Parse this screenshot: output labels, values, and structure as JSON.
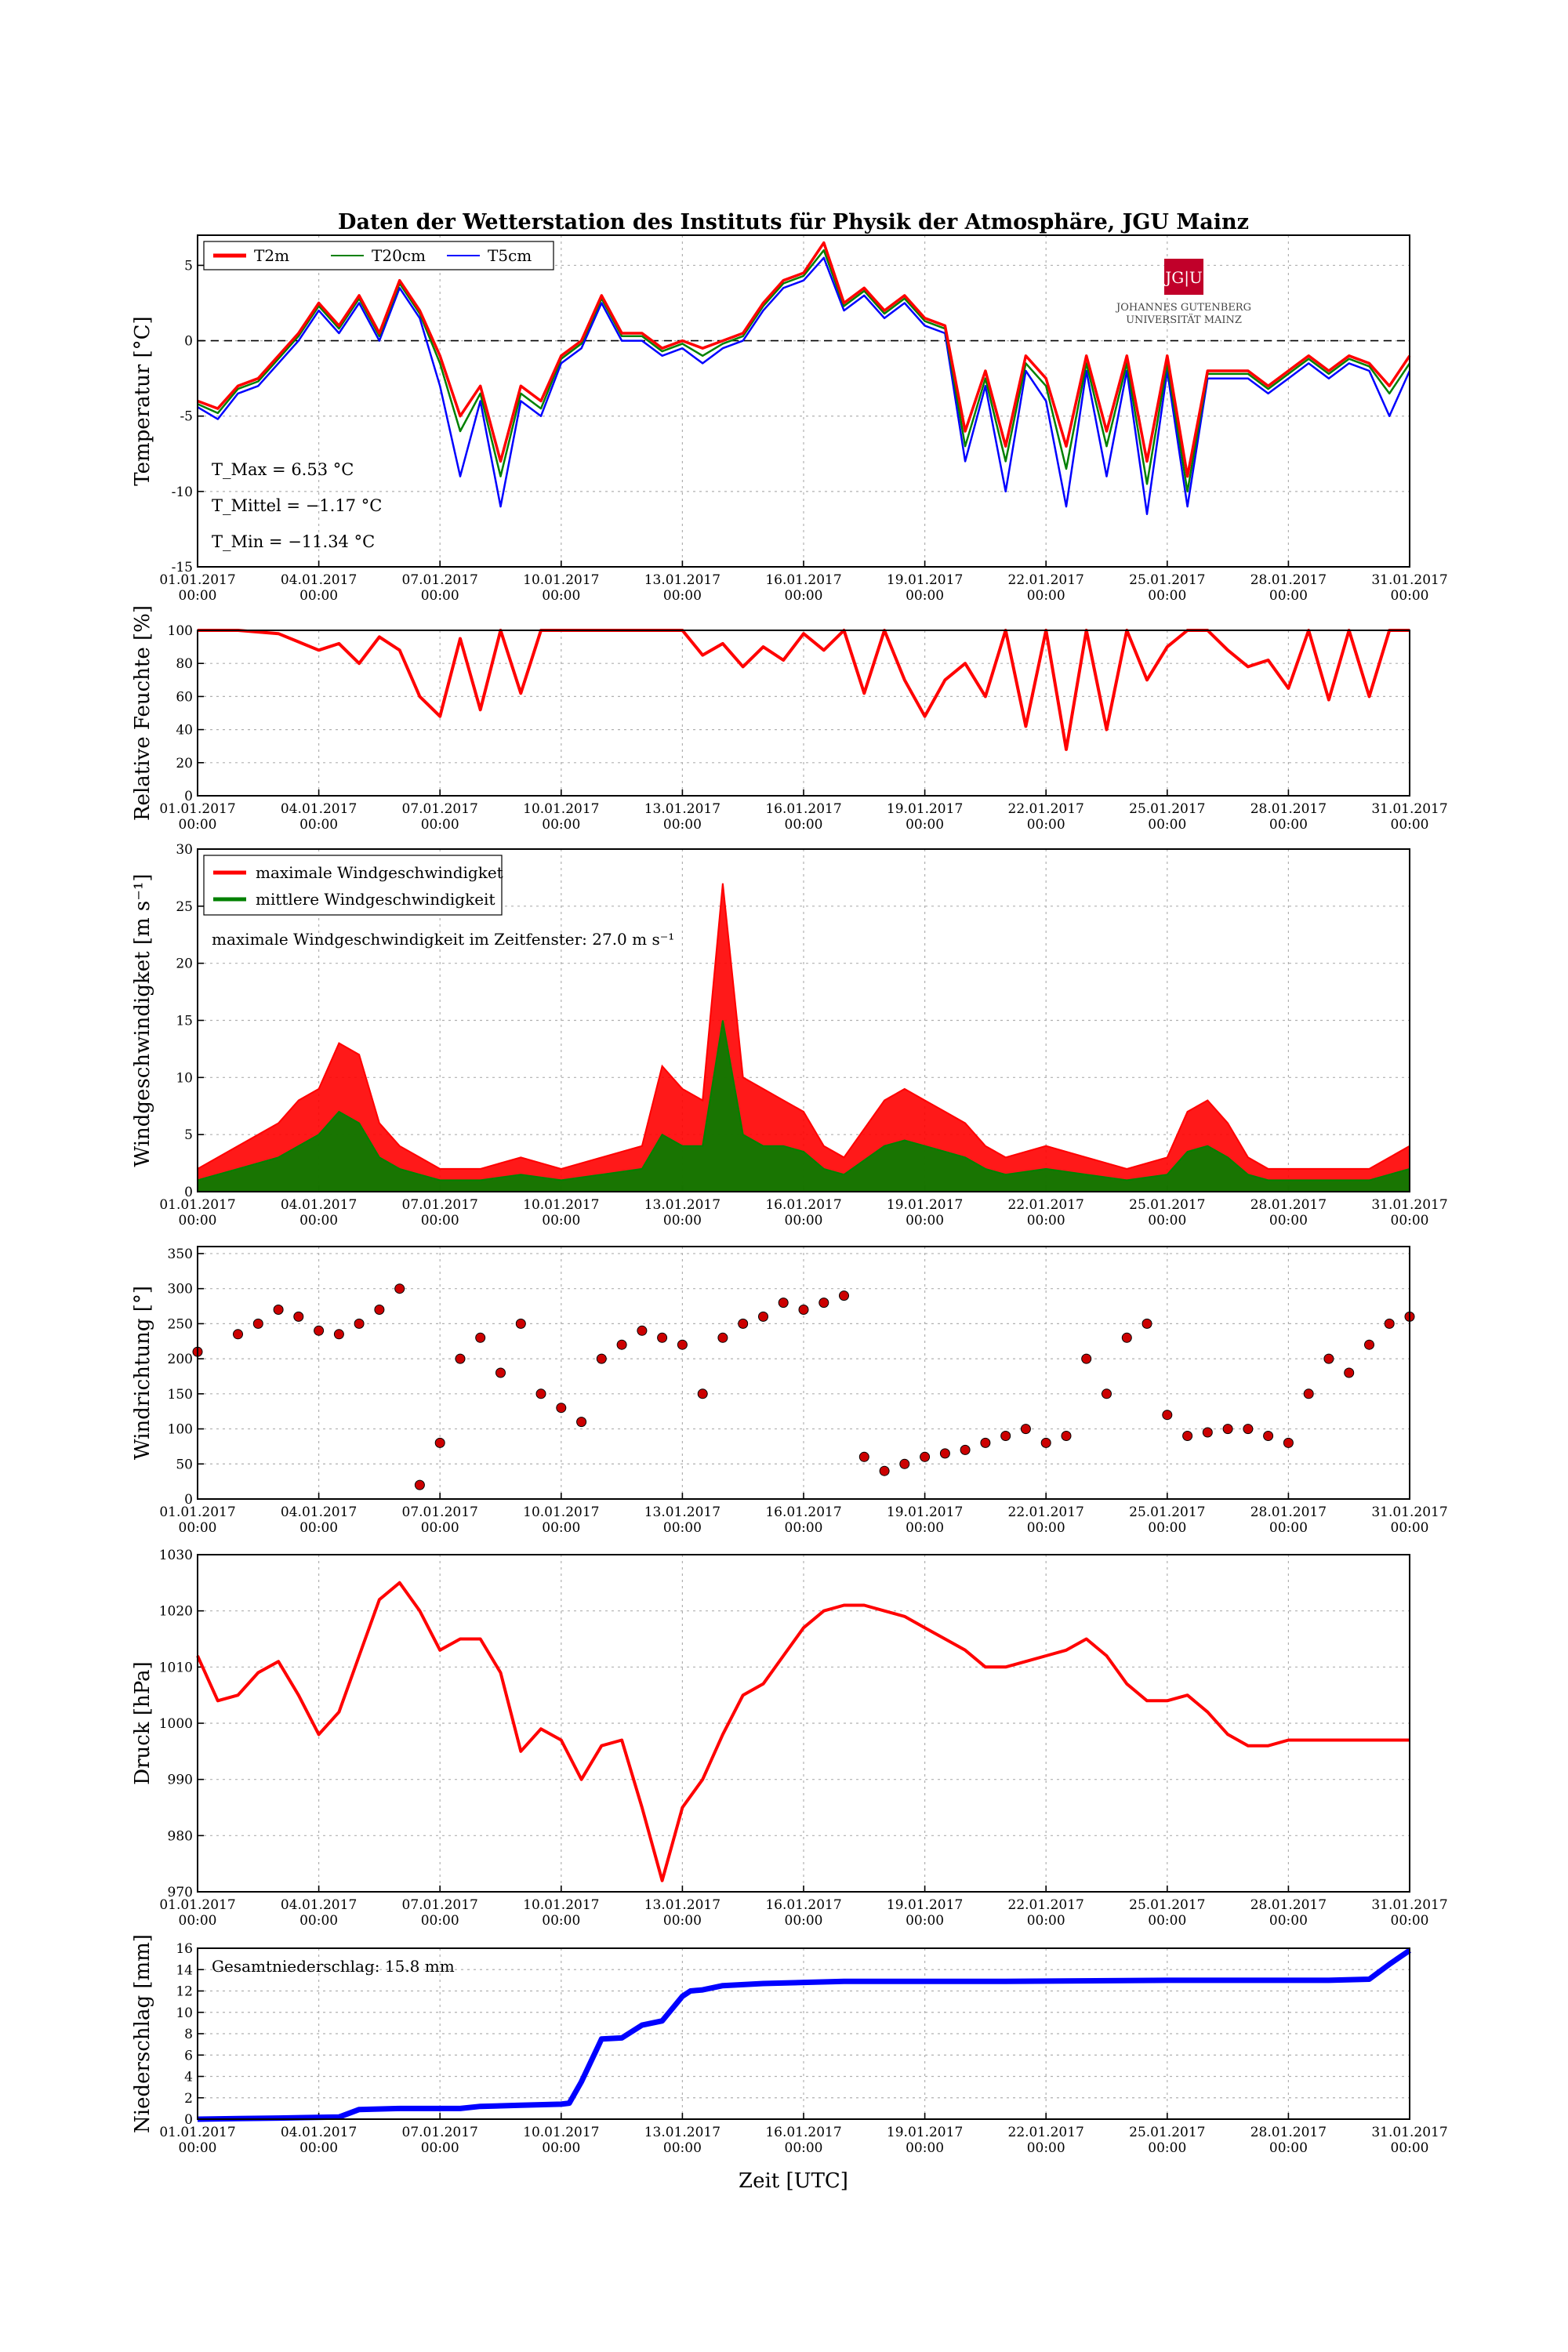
{
  "title": "Daten der Wetterstation des Instituts für Physik der Atmosphäre, JGU Mainz",
  "xlabel": "Zeit [UTC]",
  "x_ticks": [
    {
      "date": "01.01.2017",
      "time": "00:00"
    },
    {
      "date": "04.01.2017",
      "time": "00:00"
    },
    {
      "date": "07.01.2017",
      "time": "00:00"
    },
    {
      "date": "10.01.2017",
      "time": "00:00"
    },
    {
      "date": "13.01.2017",
      "time": "00:00"
    },
    {
      "date": "16.01.2017",
      "time": "00:00"
    },
    {
      "date": "19.01.2017",
      "time": "00:00"
    },
    {
      "date": "22.01.2017",
      "time": "00:00"
    },
    {
      "date": "25.01.2017",
      "time": "00:00"
    },
    {
      "date": "28.01.2017",
      "time": "00:00"
    },
    {
      "date": "31.01.2017",
      "time": "00:00"
    }
  ],
  "logo": {
    "mark": "JG|U",
    "line1": "JOHANNES GUTENBERG",
    "line2": "UNIVERSITÄT MAINZ",
    "color": "#c1002a"
  },
  "colors": {
    "red": "#ff0000",
    "green": "#008000",
    "blue": "#0000ff",
    "darkred": "#cc0000"
  },
  "chart_data": [
    {
      "type": "line",
      "ylabel": "Temperatur [°C]",
      "ylim": [
        -15,
        7
      ],
      "yticks": [
        -15,
        -10,
        -5,
        0,
        5
      ],
      "legend": {
        "placement": "top-left",
        "entries": [
          "T2m",
          "T20cm",
          "T5cm"
        ]
      },
      "annotations": [
        "T_Max = 6.53 °C",
        "T_Mittel = −1.17 °C",
        "T_Min = −11.34 °C"
      ],
      "x_days": [
        0,
        0.5,
        1,
        1.5,
        2,
        2.5,
        3,
        3.5,
        4,
        4.5,
        5,
        5.5,
        6,
        6.5,
        7,
        7.5,
        8,
        8.5,
        9,
        9.5,
        10,
        10.5,
        11,
        11.5,
        12,
        12.5,
        13,
        13.5,
        14,
        14.5,
        15,
        15.5,
        16,
        16.5,
        17,
        17.5,
        18,
        18.5,
        19,
        19.5,
        20,
        20.5,
        21,
        21.5,
        22,
        22.5,
        23,
        23.5,
        24,
        24.5,
        25,
        25.5,
        26,
        26.5,
        27,
        27.5,
        28,
        28.5,
        29,
        29.5,
        30
      ],
      "series": [
        {
          "name": "T2m",
          "color": "#ff0000",
          "values": [
            -4,
            -4.5,
            -3,
            -2.5,
            -1,
            0.5,
            2.5,
            1,
            3,
            0.5,
            4,
            2,
            -1,
            -5,
            -3,
            -8,
            -3,
            -4,
            -1,
            0,
            3,
            0.5,
            0.5,
            -0.5,
            0,
            -0.5,
            0,
            0.5,
            2.5,
            4,
            4.5,
            6.5,
            2.5,
            3.5,
            2,
            3,
            1.5,
            1,
            -6,
            -2,
            -7,
            -1,
            -2.5,
            -7,
            -1,
            -6,
            -1,
            -8,
            -1,
            -9,
            -2,
            -2,
            -2,
            -3,
            -2,
            -1,
            -2,
            -1,
            -1.5,
            -3,
            -1
          ]
        },
        {
          "name": "T20cm",
          "color": "#008000",
          "values": [
            -4.2,
            -4.8,
            -3.2,
            -2.7,
            -1.2,
            0.3,
            2.3,
            0.8,
            2.8,
            0.3,
            3.8,
            1.8,
            -1.5,
            -6,
            -3.5,
            -9,
            -3.5,
            -4.5,
            -1.2,
            -0.2,
            2.8,
            0.3,
            0.3,
            -0.7,
            -0.2,
            -1,
            -0.2,
            0.3,
            2.3,
            3.8,
            4.3,
            6,
            2.3,
            3.3,
            1.8,
            2.8,
            1.3,
            0.8,
            -7,
            -2.5,
            -8,
            -1.5,
            -3,
            -8.5,
            -1.5,
            -7,
            -1.5,
            -9.5,
            -1.5,
            -10,
            -2.2,
            -2.2,
            -2.2,
            -3.2,
            -2.2,
            -1.2,
            -2.2,
            -1.2,
            -1.7,
            -3.5,
            -1.5
          ]
        },
        {
          "name": "T5cm",
          "color": "#0000ff",
          "values": [
            -4.4,
            -5.2,
            -3.5,
            -3,
            -1.5,
            0,
            2,
            0.5,
            2.5,
            0,
            3.5,
            1.5,
            -3,
            -9,
            -4,
            -11,
            -4,
            -5,
            -1.5,
            -0.5,
            2.5,
            0,
            0,
            -1,
            -0.5,
            -1.5,
            -0.5,
            0,
            2,
            3.5,
            4,
            5.5,
            2,
            3,
            1.5,
            2.5,
            1,
            0.5,
            -8,
            -3,
            -10,
            -2,
            -4,
            -11,
            -2,
            -9,
            -2,
            -11.5,
            -2,
            -11,
            -2.5,
            -2.5,
            -2.5,
            -3.5,
            -2.5,
            -1.5,
            -2.5,
            -1.5,
            -2,
            -5,
            -2
          ]
        }
      ]
    },
    {
      "type": "line",
      "ylabel": "Relative Feuchte [%]",
      "ylim": [
        0,
        100
      ],
      "yticks": [
        0,
        20,
        40,
        60,
        80,
        100
      ],
      "x_days": [
        0,
        1,
        2,
        3,
        3.5,
        4,
        4.5,
        5,
        5.5,
        6,
        6.5,
        7,
        7.5,
        8,
        8.5,
        9,
        10,
        11,
        12,
        12.5,
        13,
        13.5,
        14,
        14.5,
        15,
        15.5,
        16,
        16.5,
        17,
        17.5,
        18,
        18.5,
        19,
        19.5,
        20,
        20.5,
        21,
        21.5,
        22,
        22.5,
        23,
        23.5,
        24,
        24.5,
        25,
        25.5,
        26,
        26.5,
        27,
        27.5,
        28,
        28.5,
        29,
        29.5,
        30
      ],
      "values": [
        100,
        100,
        98,
        88,
        92,
        80,
        96,
        88,
        60,
        48,
        95,
        52,
        100,
        62,
        100,
        100,
        100,
        100,
        100,
        85,
        92,
        78,
        90,
        82,
        98,
        88,
        100,
        62,
        100,
        70,
        48,
        70,
        80,
        60,
        100,
        42,
        100,
        28,
        100,
        40,
        100,
        70,
        90,
        100,
        100,
        88,
        78,
        82,
        65,
        100,
        58,
        100,
        60,
        100,
        100
      ]
    },
    {
      "type": "line",
      "ylabel": "Windgeschwindigket [m s⁻¹]",
      "ylim": [
        0,
        30
      ],
      "yticks": [
        0,
        5,
        10,
        15,
        20,
        25,
        30
      ],
      "legend": {
        "placement": "top-left",
        "entries": [
          "maximale Windgeschwindigket",
          "mittlere Windgeschwindigkeit"
        ]
      },
      "annotation": "maximale Windgeschwindigkeit im Zeitfenster: 27.0 m s⁻¹",
      "x_days": [
        0,
        1,
        2,
        2.5,
        3,
        3.5,
        4,
        4.5,
        5,
        5.5,
        6,
        7,
        8,
        9,
        10,
        11,
        11.5,
        12,
        12.5,
        13,
        13.5,
        14,
        14.5,
        15,
        15.5,
        16,
        17,
        17.5,
        18,
        18.5,
        19,
        19.5,
        20,
        21,
        22,
        23,
        24,
        24.5,
        25,
        25.5,
        26,
        26.5,
        27,
        28,
        29,
        30
      ],
      "series": [
        {
          "name": "maximale Windgeschwindigket",
          "color": "#ff0000",
          "values": [
            2,
            4,
            6,
            8,
            9,
            13,
            12,
            6,
            4,
            3,
            2,
            2,
            3,
            2,
            3,
            4,
            11,
            9,
            8,
            27,
            10,
            9,
            8,
            7,
            4,
            3,
            8,
            9,
            8,
            7,
            6,
            4,
            3,
            4,
            3,
            2,
            3,
            7,
            8,
            6,
            3,
            2,
            2,
            2,
            2,
            4
          ]
        },
        {
          "name": "mittlere Windgeschwindigkeit",
          "color": "#008000",
          "values": [
            1,
            2,
            3,
            4,
            5,
            7,
            6,
            3,
            2,
            1.5,
            1,
            1,
            1.5,
            1,
            1.5,
            2,
            5,
            4,
            4,
            15,
            5,
            4,
            4,
            3.5,
            2,
            1.5,
            4,
            4.5,
            4,
            3.5,
            3,
            2,
            1.5,
            2,
            1.5,
            1,
            1.5,
            3.5,
            4,
            3,
            1.5,
            1,
            1,
            1,
            1,
            2
          ]
        }
      ]
    },
    {
      "type": "scatter",
      "ylabel": "Windrichtung [°]",
      "ylim": [
        0,
        360
      ],
      "yticks": [
        0,
        50,
        100,
        150,
        200,
        250,
        300,
        350
      ],
      "x_days": [
        0,
        1,
        1.5,
        2,
        2.5,
        3,
        3.5,
        4,
        4.5,
        5,
        5.5,
        6,
        6.5,
        7,
        7.5,
        8,
        8.5,
        9,
        9.5,
        10,
        10.5,
        11,
        11.5,
        12,
        12.5,
        13,
        13.5,
        14,
        14.5,
        15,
        15.5,
        16,
        16.5,
        17,
        17.5,
        18,
        18.5,
        19,
        19.5,
        20,
        20.5,
        21,
        21.5,
        22,
        22.5,
        23,
        23.5,
        24,
        24.5,
        25,
        25.5,
        26,
        26.5,
        27,
        27.5,
        28,
        28.5,
        29,
        29.5,
        30
      ],
      "values": [
        210,
        235,
        250,
        270,
        260,
        240,
        235,
        250,
        270,
        300,
        20,
        80,
        200,
        230,
        180,
        250,
        150,
        130,
        110,
        200,
        220,
        240,
        230,
        220,
        150,
        230,
        250,
        260,
        280,
        270,
        280,
        290,
        60,
        40,
        50,
        60,
        65,
        70,
        80,
        90,
        100,
        80,
        90,
        200,
        150,
        230,
        250,
        120,
        90,
        95,
        100,
        100,
        90,
        80,
        150,
        200,
        180,
        220,
        250,
        260
      ]
    },
    {
      "type": "line",
      "ylabel": "Druck [hPa]",
      "ylim": [
        970,
        1030
      ],
      "yticks": [
        970,
        980,
        990,
        1000,
        1010,
        1020,
        1030
      ],
      "x_days": [
        0,
        0.5,
        1,
        1.5,
        2,
        2.5,
        3,
        3.5,
        4,
        4.5,
        5,
        5.5,
        6,
        6.5,
        7,
        7.5,
        8,
        8.5,
        9,
        9.5,
        10,
        10.5,
        11,
        11.5,
        12,
        12.5,
        13,
        13.5,
        14,
        14.5,
        15,
        15.5,
        16,
        16.5,
        17,
        17.5,
        18,
        18.5,
        19,
        19.5,
        20,
        20.5,
        21,
        21.5,
        22,
        22.5,
        23,
        23.5,
        24,
        24.5,
        25,
        25.5,
        26,
        26.5,
        27,
        27.5,
        28,
        28.5,
        29,
        29.5,
        30
      ],
      "values": [
        1012,
        1004,
        1005,
        1009,
        1011,
        1005,
        998,
        1002,
        1012,
        1022,
        1025,
        1020,
        1013,
        1015,
        1015,
        1009,
        995,
        999,
        997,
        990,
        996,
        997,
        985,
        972,
        985,
        990,
        998,
        1005,
        1007,
        1012,
        1017,
        1020,
        1021,
        1021,
        1020,
        1019,
        1017,
        1015,
        1013,
        1010,
        1010,
        1011,
        1012,
        1013,
        1015,
        1012,
        1007,
        1004,
        1004,
        1005,
        1002,
        998,
        996,
        996,
        997,
        997,
        997,
        997,
        997,
        997,
        997
      ]
    },
    {
      "type": "area",
      "ylabel": "Niederschlag [mm]",
      "ylim": [
        0,
        16
      ],
      "yticks": [
        0,
        2,
        4,
        6,
        8,
        10,
        12,
        14,
        16
      ],
      "annotation": "Gesamtniederschlag: 15.8 mm",
      "x_days": [
        0,
        1,
        2,
        3.5,
        4,
        5,
        6,
        6.5,
        7,
        8,
        9,
        9.2,
        9.5,
        10,
        10.5,
        11,
        11.5,
        12,
        12.2,
        12.5,
        13,
        14,
        15,
        16,
        20,
        24,
        28,
        29,
        29.5,
        30
      ],
      "values": [
        0,
        0.05,
        0.1,
        0.2,
        0.9,
        1,
        1,
        1,
        1.2,
        1.3,
        1.4,
        1.5,
        3.5,
        7.5,
        7.6,
        8.8,
        9.2,
        11.5,
        12,
        12.1,
        12.5,
        12.7,
        12.8,
        12.9,
        12.9,
        13,
        13,
        13.1,
        14.5,
        15.8
      ]
    }
  ]
}
